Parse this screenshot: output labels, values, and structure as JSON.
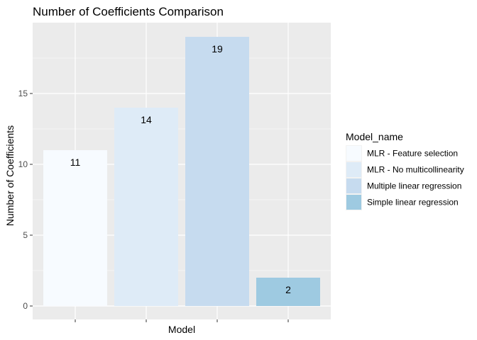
{
  "chart_data": {
    "type": "bar",
    "title": "Number of Coefficients Comparison",
    "xlabel": "Model",
    "ylabel": "Number of Coefficients",
    "categories": [
      "MLR - Feature selection",
      "MLR - No multicollinearity",
      "Multiple linear regression",
      "Simple linear regression"
    ],
    "values": [
      11,
      14,
      19,
      2
    ],
    "data_labels": [
      "11",
      "14",
      "19",
      "2"
    ],
    "colors": [
      "#f7fbff",
      "#deebf7",
      "#c6dbef",
      "#9ecae1"
    ],
    "ylim": [
      0,
      19.9
    ],
    "yticks": [
      0,
      5,
      10,
      15
    ],
    "ytick_labels": [
      "0",
      "5",
      "10",
      "15"
    ],
    "x_tick_labels_visible": false,
    "grid": true,
    "legend": {
      "title": "Model_name",
      "position": "right",
      "entries": [
        "MLR - Feature selection",
        "MLR - No multicollinearity",
        "Multiple linear regression",
        "Simple linear regression"
      ]
    },
    "panel_background": "#ebebeb",
    "grid_color": "#ffffff"
  }
}
